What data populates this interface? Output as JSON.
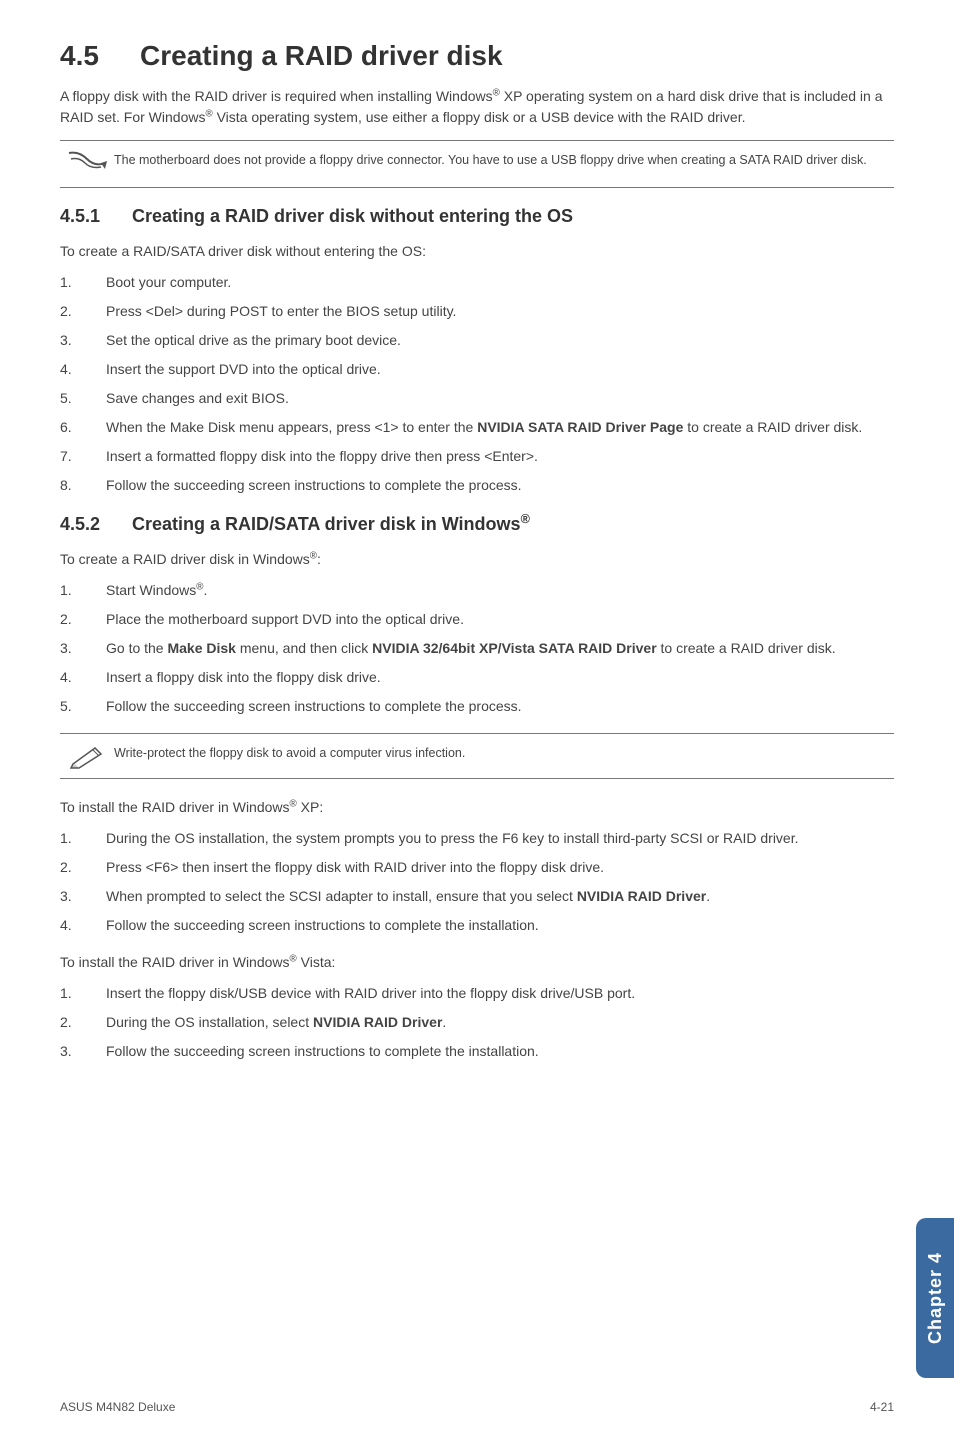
{
  "section": {
    "number": "4.5",
    "title": "Creating a RAID driver disk"
  },
  "intro": "A floppy disk with the RAID driver is required when installing Windows® XP operating system on a hard disk drive that is included in a RAID set. For Windows® Vista operating system, use either a floppy disk or a USB device with the RAID driver.",
  "note1": "The motherboard does not provide a floppy drive connector. You have to use a USB floppy drive when creating a SATA RAID driver disk.",
  "sub1": {
    "num": "4.5.1",
    "title": "Creating a RAID driver disk without entering the OS"
  },
  "sub1_lead": "To create a RAID/SATA driver disk without entering the OS:",
  "sub1_steps": [
    "Boot your computer.",
    "Press <Del> during POST to enter the BIOS setup utility.",
    "Set the optical drive as the primary boot device.",
    "Insert the support DVD into the optical drive.",
    "Save changes and exit BIOS.",
    "When the Make Disk menu appears, press <1> to enter the <b>NVIDIA SATA RAID Driver Page</b> to create a RAID driver disk.",
    "Insert a formatted floppy disk into the floppy drive then press <Enter>.",
    "Follow the succeeding screen instructions to complete the process."
  ],
  "sub2": {
    "num": "4.5.2",
    "title": "Creating a RAID/SATA driver disk in Windows®"
  },
  "sub2_lead": "To create a RAID driver disk in Windows®:",
  "sub2_steps": [
    "Start Windows®.",
    "Place the motherboard support DVD into the optical drive.",
    "Go to the <b>Make Disk</b> menu, and then click <b>NVIDIA 32/64bit XP/Vista SATA RAID Driver</b> to create a RAID driver disk.",
    "Insert a floppy disk into the floppy disk drive.",
    "Follow the succeeding screen instructions to complete the process."
  ],
  "note2": "Write-protect the floppy disk to avoid a computer virus infection.",
  "xp_lead": "To install the RAID driver in Windows® XP:",
  "xp_steps": [
    "During the OS installation, the system prompts you to press the F6 key to install third-party SCSI or RAID driver.",
    "Press <F6> then insert the floppy disk with RAID driver into the floppy disk drive.",
    "When prompted to select the SCSI adapter to install, ensure that you select <b>NVIDIA RAID Driver</b>.",
    "Follow the succeeding screen instructions to complete the installation."
  ],
  "vista_lead": "To install the RAID driver in Windows® Vista:",
  "vista_steps": [
    "Insert the floppy disk/USB device with RAID driver into the floppy disk drive/USB port.",
    "During the OS installation, select <b>NVIDIA RAID Driver</b>.",
    "Follow the succeeding screen instructions to complete the installation."
  ],
  "sidetab": "Chapter 4",
  "footer_left": "ASUS M4N82 Deluxe",
  "footer_right": "4-21",
  "colors": {
    "sidetab_bg": "#3b6aa0",
    "sidetab_text": "#ffffff"
  }
}
